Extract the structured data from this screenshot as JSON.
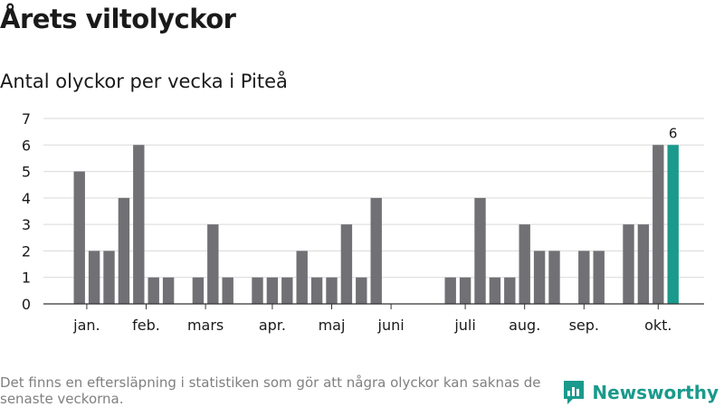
{
  "chart_data": {
    "type": "bar",
    "title": "Årets viltolyckor",
    "subtitle": "Antal olyckor per vecka i Piteå",
    "ylim": [
      0,
      7
    ],
    "yticks": [
      0,
      1,
      2,
      3,
      4,
      5,
      6,
      7
    ],
    "grid": true,
    "weeks": [
      1,
      2,
      3,
      4,
      5,
      6,
      7,
      8,
      9,
      10,
      11,
      12,
      13,
      14,
      15,
      16,
      17,
      18,
      19,
      20,
      21,
      22,
      23,
      24,
      25,
      26,
      27,
      28,
      29,
      30,
      31,
      32,
      33,
      34,
      35,
      36,
      37,
      38,
      39,
      40,
      41
    ],
    "values": [
      5,
      2,
      2,
      4,
      6,
      1,
      1,
      0,
      1,
      3,
      1,
      0,
      1,
      1,
      1,
      2,
      1,
      1,
      3,
      1,
      4,
      0,
      0,
      0,
      0,
      1,
      1,
      4,
      1,
      1,
      3,
      2,
      2,
      0,
      2,
      2,
      0,
      3,
      3,
      6,
      6
    ],
    "highlight_index": 40,
    "data_labels": [
      {
        "index": 40,
        "text": "6"
      }
    ],
    "month_labels": [
      {
        "label": "jan.",
        "week": 1.5
      },
      {
        "label": "feb.",
        "week": 5.5
      },
      {
        "label": "mars",
        "week": 9.5
      },
      {
        "label": "apr.",
        "week": 14
      },
      {
        "label": "maj",
        "week": 18
      },
      {
        "label": "juni",
        "week": 22
      },
      {
        "label": "juli",
        "week": 27
      },
      {
        "label": "aug.",
        "week": 31
      },
      {
        "label": "sep.",
        "week": 35
      },
      {
        "label": "okt.",
        "week": 40
      }
    ]
  },
  "colors": {
    "bar": "#717074",
    "highlight": "#1a9a8c",
    "grid": "#d9d9d9",
    "axis": "#333333"
  },
  "footnote": "Det finns en eftersläpning i statistiken som gör att några olyckor kan saknas de senaste veckorna.",
  "brand": {
    "name": "Newsworthy",
    "icon": "newsworthy-logo-icon"
  }
}
